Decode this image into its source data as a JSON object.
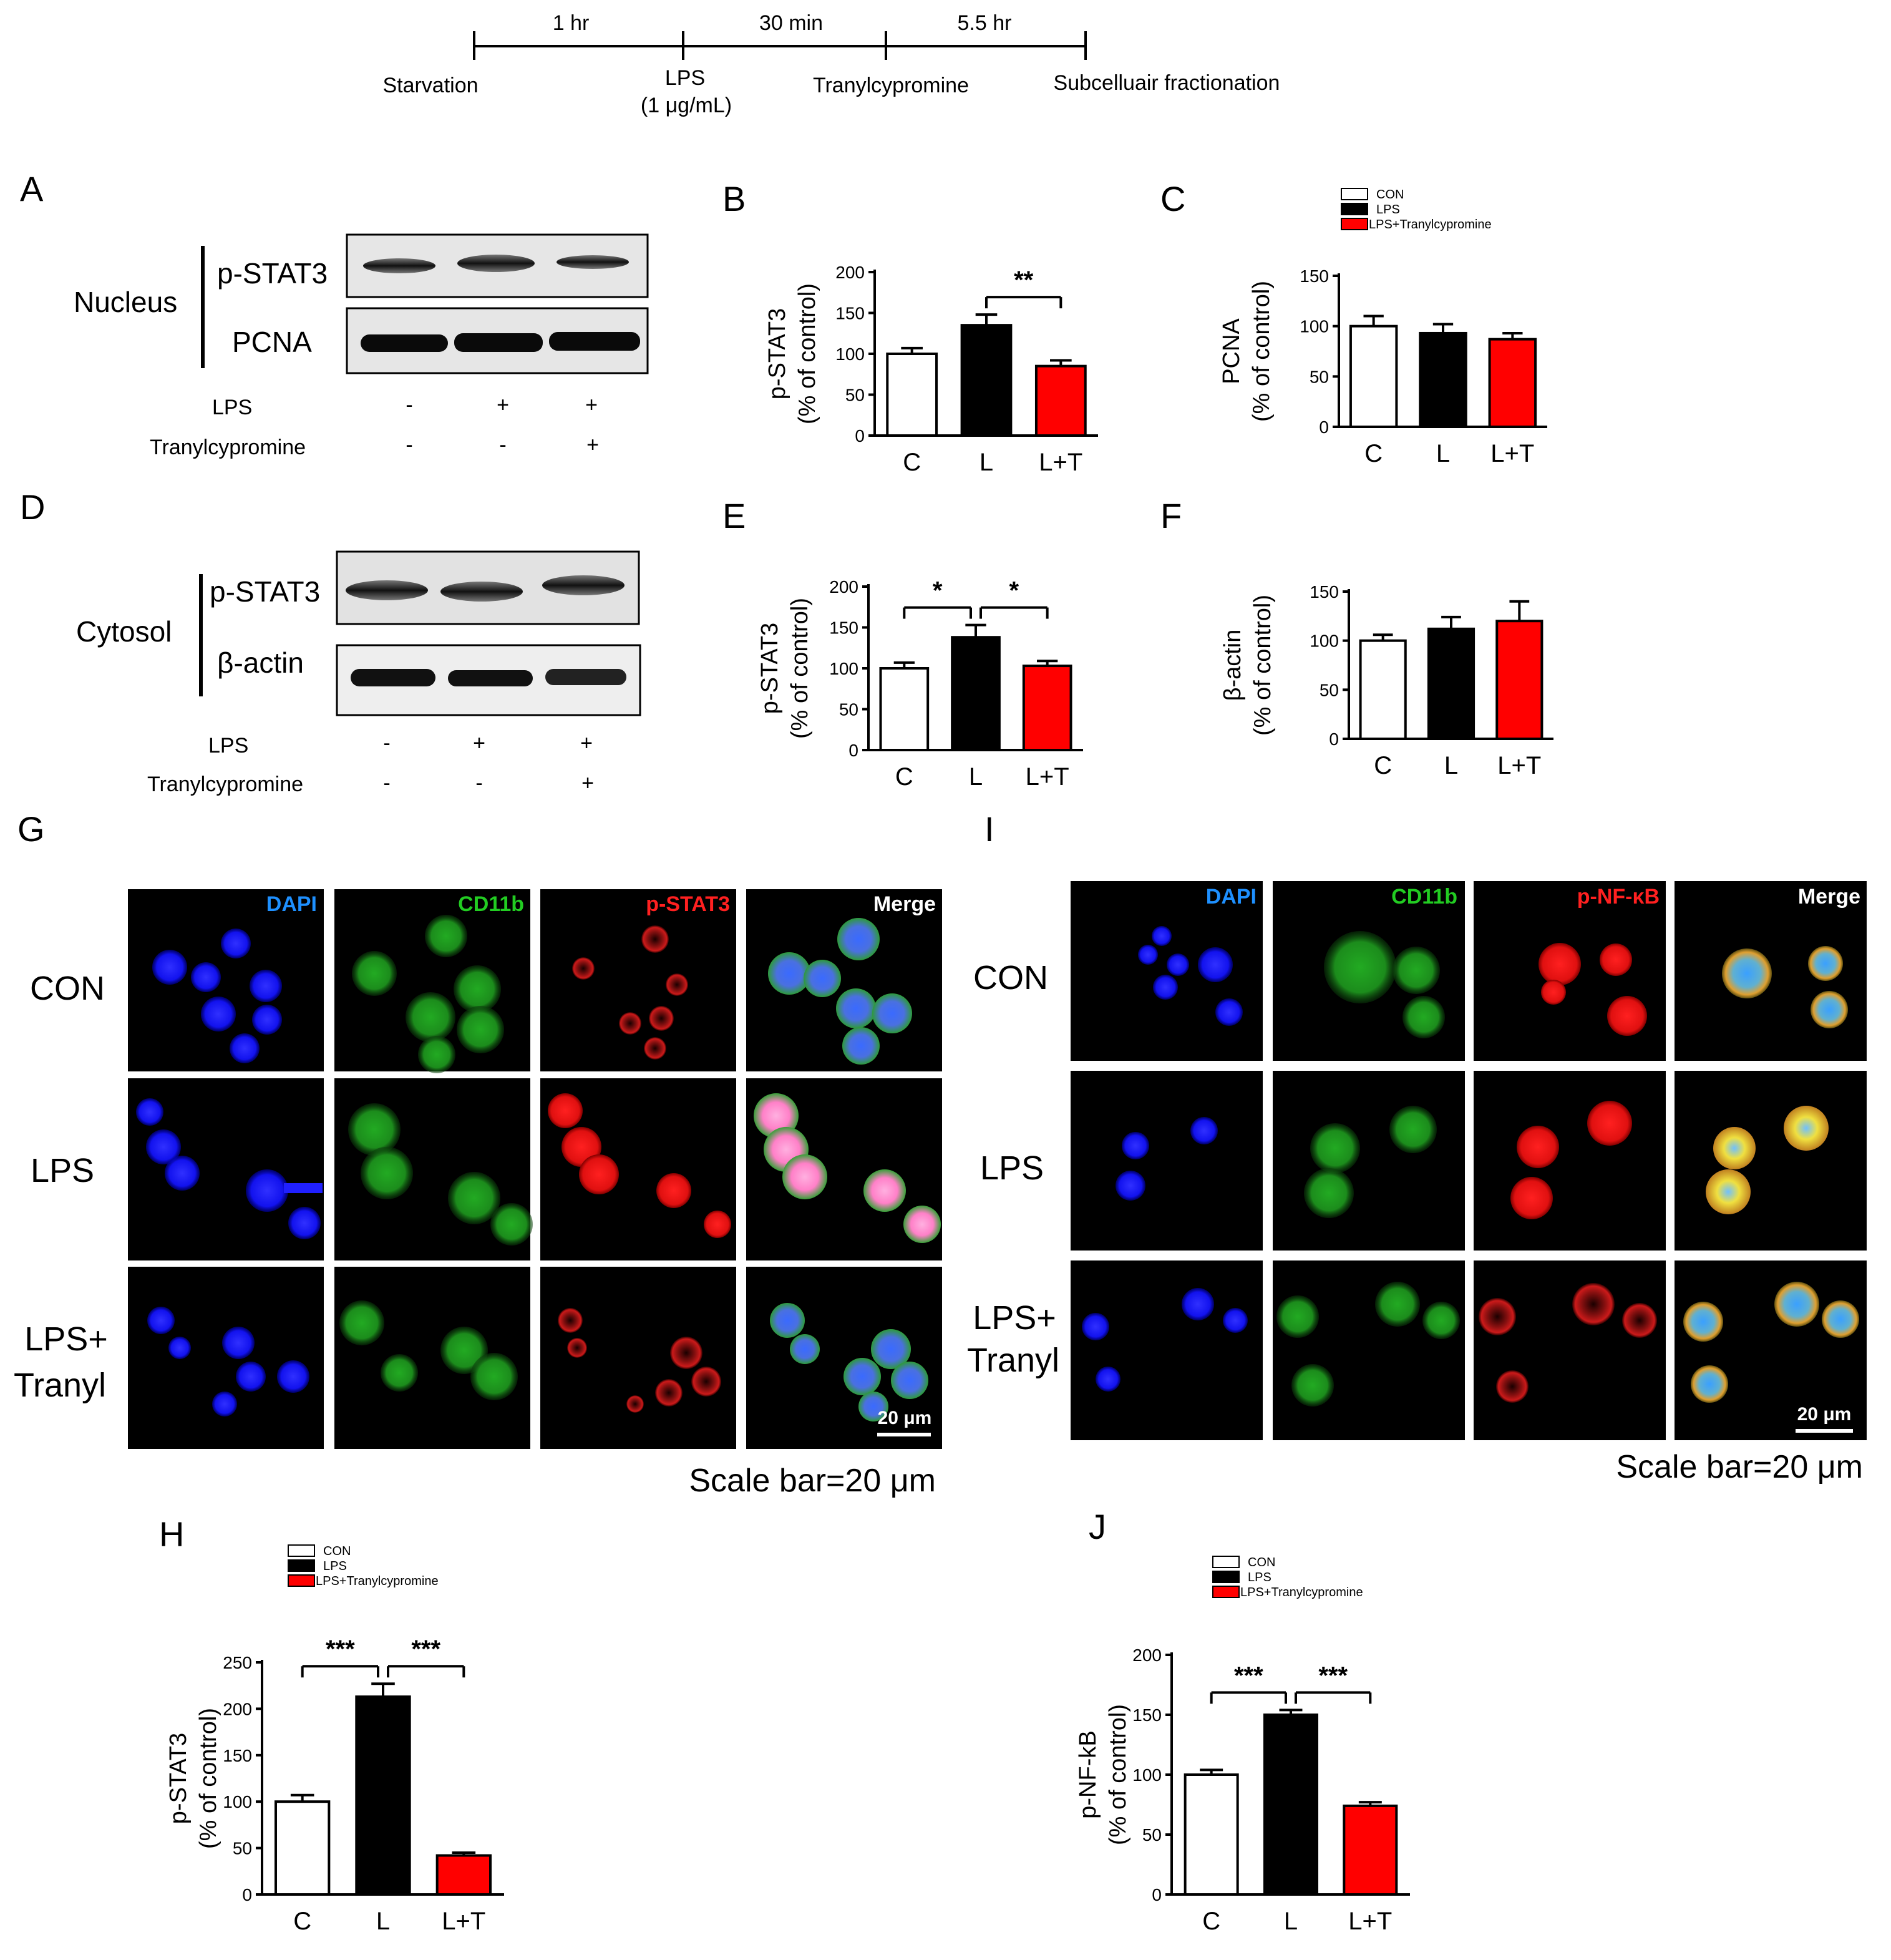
{
  "timeline": {
    "intervals": [
      "1 hr",
      "30 min",
      "5.5 hr"
    ],
    "steps": [
      "Starvation",
      "LPS",
      "(1 μg/mL)",
      "Tranylcypromine",
      "Subcelluair fractionation"
    ]
  },
  "panel_letters": [
    "A",
    "B",
    "C",
    "D",
    "E",
    "F",
    "G",
    "H",
    "I",
    "J"
  ],
  "western": {
    "A": {
      "compartment": "Nucleus",
      "rows": [
        "p-STAT3",
        "PCNA"
      ],
      "treatments": [
        "LPS",
        "Tranylcypromine"
      ],
      "signs": [
        [
          "-",
          "+",
          "+"
        ],
        [
          "-",
          "-",
          "+"
        ]
      ]
    },
    "D": {
      "compartment": "Cytosol",
      "rows": [
        "p-STAT3",
        "β-actin"
      ],
      "treatments": [
        "LPS",
        "Tranylcypromine"
      ],
      "signs": [
        [
          "-",
          "+",
          "+"
        ],
        [
          "-",
          "-",
          "+"
        ]
      ]
    }
  },
  "legend": {
    "entries": [
      "CON",
      "LPS",
      "LPS+Tranylcypromine"
    ],
    "colors": [
      "#ffffff",
      "#000000",
      "#ff0000"
    ]
  },
  "colors": {
    "con": "#ffffff",
    "lps": "#000000",
    "lpst": "#ff0000",
    "dapi": "#1a1aff",
    "cd11b": "#22cc22",
    "red": "#ff1a1a"
  },
  "microscopy": {
    "G": {
      "channels": [
        "DAPI",
        "CD11b",
        "p-STAT3",
        "Merge"
      ],
      "conditions": [
        "CON",
        "LPS",
        "LPS+",
        "Tranyl"
      ],
      "scale_label": "20 μm",
      "scale_caption": "Scale bar=20 μm"
    },
    "I": {
      "channels": [
        "DAPI",
        "CD11b",
        "p-NF-κB",
        "Merge"
      ],
      "conditions": [
        "CON",
        "LPS",
        "LPS+",
        "Tranyl"
      ],
      "scale_label": "20 μm",
      "scale_caption": "Scale bar=20 μm"
    }
  },
  "chart_data": [
    {
      "id": "B",
      "type": "bar",
      "categories": [
        "C",
        "L",
        "L+T"
      ],
      "values": [
        100,
        135,
        85
      ],
      "errors": [
        7,
        13,
        7
      ],
      "ylabel": [
        "p-STAT3",
        "(% of control)"
      ],
      "ylim": [
        0,
        200
      ],
      "yticks": [
        0,
        50,
        100,
        150,
        200
      ],
      "significance": [
        {
          "from": 1,
          "to": 2,
          "label": "**"
        }
      ]
    },
    {
      "id": "C",
      "type": "bar",
      "categories": [
        "C",
        "L",
        "L+T"
      ],
      "values": [
        100,
        93,
        87
      ],
      "errors": [
        10,
        9,
        6
      ],
      "ylabel": [
        "PCNA",
        "(% of control)"
      ],
      "ylim": [
        0,
        150
      ],
      "yticks": [
        0,
        50,
        100,
        150
      ],
      "significance": []
    },
    {
      "id": "E",
      "type": "bar",
      "categories": [
        "C",
        "L",
        "L+T"
      ],
      "values": [
        100,
        138,
        103
      ],
      "errors": [
        7,
        15,
        6
      ],
      "ylabel": [
        "p-STAT3",
        "(% of control)"
      ],
      "ylim": [
        0,
        200
      ],
      "yticks": [
        0,
        50,
        100,
        150,
        200
      ],
      "significance": [
        {
          "from": 0,
          "to": 1,
          "label": "*"
        },
        {
          "from": 1,
          "to": 2,
          "label": "*"
        }
      ]
    },
    {
      "id": "F",
      "type": "bar",
      "categories": [
        "C",
        "L",
        "L+T"
      ],
      "values": [
        100,
        112,
        120
      ],
      "errors": [
        6,
        12,
        20
      ],
      "ylabel": [
        "β-actin",
        "(% of control)"
      ],
      "ylim": [
        0,
        150
      ],
      "yticks": [
        0,
        50,
        100,
        150
      ],
      "significance": []
    },
    {
      "id": "H",
      "type": "bar",
      "categories": [
        "C",
        "L",
        "L+T"
      ],
      "values": [
        100,
        213,
        42
      ],
      "errors": [
        7,
        14,
        3
      ],
      "ylabel": [
        "p-STAT3",
        "(% of control)"
      ],
      "ylim": [
        0,
        250
      ],
      "yticks": [
        0,
        50,
        100,
        150,
        200,
        250
      ],
      "significance": [
        {
          "from": 0,
          "to": 1,
          "label": "***"
        },
        {
          "from": 1,
          "to": 2,
          "label": "***"
        }
      ]
    },
    {
      "id": "J",
      "type": "bar",
      "categories": [
        "C",
        "L",
        "L+T"
      ],
      "values": [
        100,
        150,
        74
      ],
      "errors": [
        4,
        4,
        3
      ],
      "ylabel": [
        "p-NF-kB",
        "(% of control)"
      ],
      "ylim": [
        0,
        200
      ],
      "yticks": [
        0,
        50,
        100,
        150,
        200
      ],
      "significance": [
        {
          "from": 0,
          "to": 1,
          "label": "***"
        },
        {
          "from": 1,
          "to": 2,
          "label": "***"
        }
      ]
    }
  ]
}
